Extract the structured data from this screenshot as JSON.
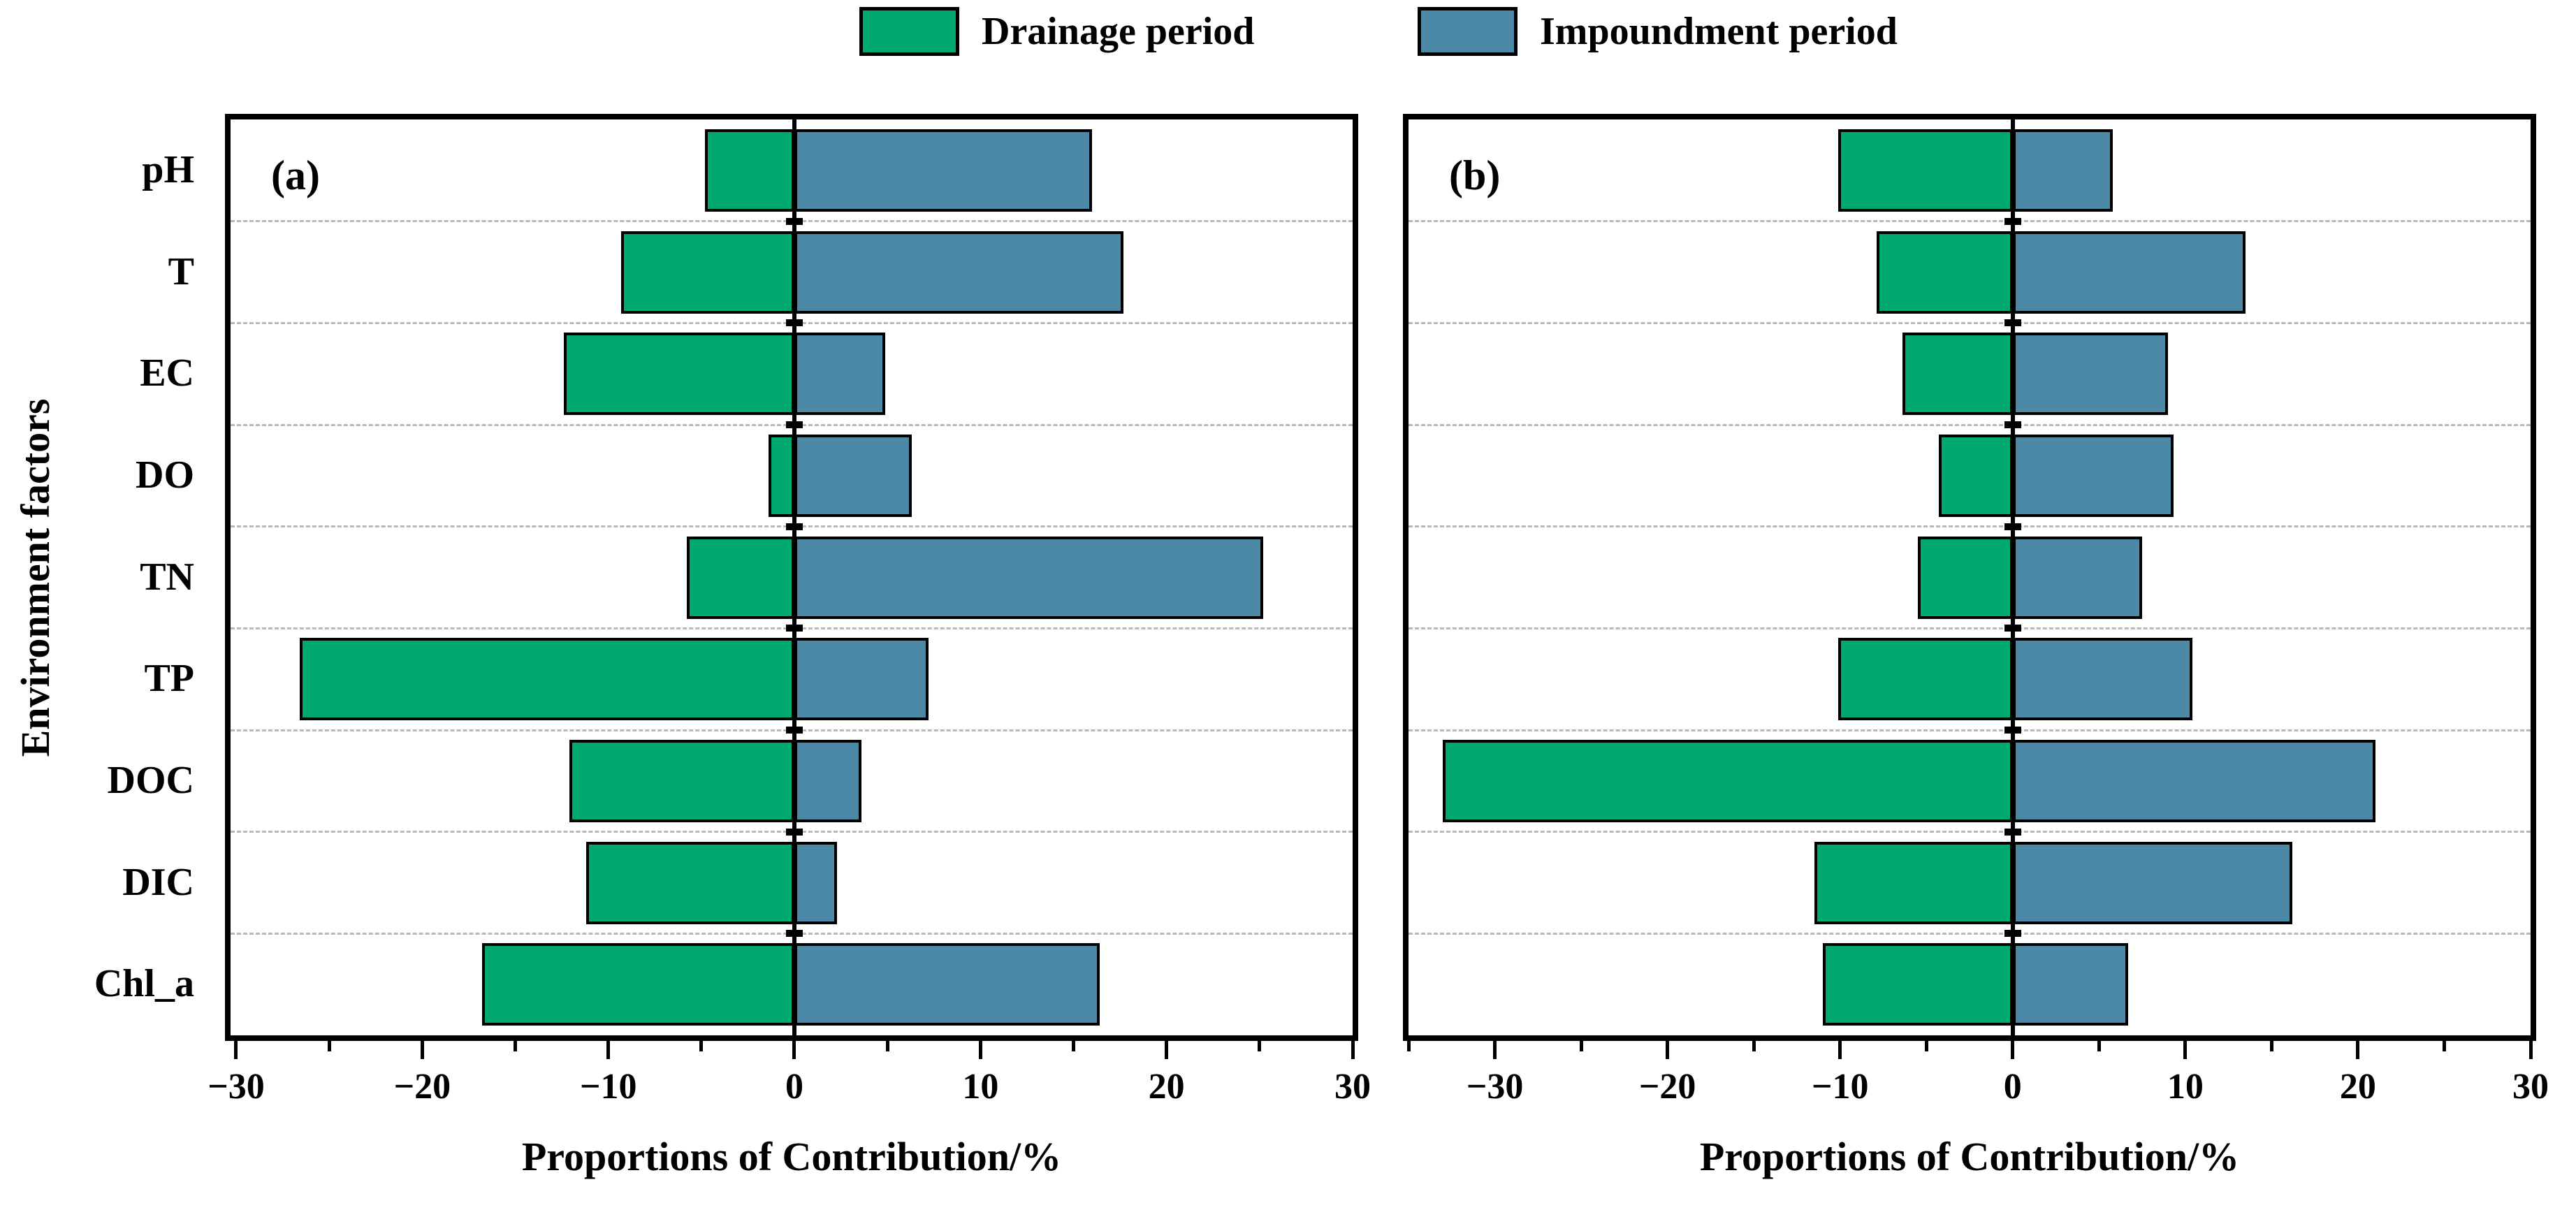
{
  "legend": {
    "items": [
      {
        "label": "Drainage period",
        "color": "#00A96E"
      },
      {
        "label": "Impoundment period",
        "color": "#4B89A7"
      }
    ]
  },
  "y_axis_title": "Environment factors",
  "chart_data": [
    {
      "type": "bar",
      "orientation": "horizontal",
      "panel_label": "(a)",
      "xlabel": "Proportions of Contribution/%",
      "categories": [
        "pH",
        "T",
        "EC",
        "DO",
        "TN",
        "TP",
        "DOC",
        "DIC",
        "Chl_a"
      ],
      "series": [
        {
          "name": "Drainage period",
          "color": "#00A96E",
          "values": [
            -4.8,
            -9.3,
            -12.4,
            -1.4,
            -5.8,
            -26.6,
            -12.1,
            -11.2,
            -16.8
          ]
        },
        {
          "name": "Impoundment period",
          "color": "#4B89A7",
          "values": [
            16.0,
            17.7,
            4.9,
            6.3,
            25.2,
            7.2,
            3.6,
            2.3,
            16.4
          ]
        }
      ],
      "xlim": [
        -30.3,
        30
      ],
      "x_ticks": [
        -30,
        -20,
        -10,
        0,
        10,
        20,
        30
      ],
      "minor_tick_step": 5,
      "grid": "dashed horizontal lines between categories",
      "legend_position": "top"
    },
    {
      "type": "bar",
      "orientation": "horizontal",
      "panel_label": "(b)",
      "xlabel": "Proportions of Contribution/%",
      "categories": [
        "pH",
        "T",
        "EC",
        "DO",
        "TN",
        "TP",
        "DOC",
        "DIC",
        "Chl_a"
      ],
      "series": [
        {
          "name": "Drainage period",
          "color": "#00A96E",
          "values": [
            -10.1,
            -7.9,
            -6.4,
            -4.3,
            -5.5,
            -10.1,
            -33.0,
            -11.5,
            -11.0
          ]
        },
        {
          "name": "Impoundment period",
          "color": "#4B89A7",
          "values": [
            5.8,
            13.5,
            9.0,
            9.3,
            7.5,
            10.4,
            21.0,
            16.2,
            6.7
          ]
        }
      ],
      "xlim": [
        -35,
        30
      ],
      "x_ticks": [
        -30,
        -20,
        -10,
        0,
        10,
        20,
        30
      ],
      "minor_tick_step": 5,
      "grid": "dashed horizontal lines between categories",
      "legend_position": "top"
    }
  ]
}
